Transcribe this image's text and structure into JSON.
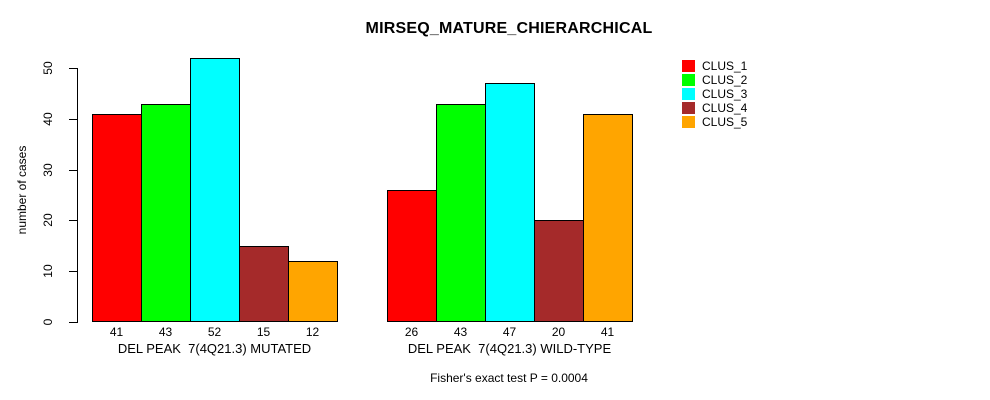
{
  "title": "MIRSEQ_MATURE_CHIERARCHICAL",
  "footer": "Fisher's exact test P = 0.0004",
  "chart_data": {
    "type": "bar",
    "title": "MIRSEQ_MATURE_CHIERARCHICAL",
    "xlabel": "",
    "ylabel": "number of cases",
    "ylim": [
      0,
      52
    ],
    "yticks": [
      0,
      10,
      20,
      30,
      40,
      50
    ],
    "grid": false,
    "legend_position": "right-outside",
    "bar_value_labels_shown": true,
    "categories": [
      "DEL PEAK  7(4Q21.3) MUTATED",
      "DEL PEAK  7(4Q21.3) WILD-TYPE"
    ],
    "series": [
      {
        "name": "CLUS_1",
        "color": "#FF0000",
        "values": [
          41,
          26
        ]
      },
      {
        "name": "CLUS_2",
        "color": "#00FF00",
        "values": [
          43,
          43
        ]
      },
      {
        "name": "CLUS_3",
        "color": "#00FFFF",
        "values": [
          52,
          47
        ]
      },
      {
        "name": "CLUS_4",
        "color": "#A52A2A",
        "values": [
          15,
          20
        ]
      },
      {
        "name": "CLUS_5",
        "color": "#FFA500",
        "values": [
          12,
          41
        ]
      }
    ],
    "annotation": "Fisher's exact test P = 0.0004"
  }
}
